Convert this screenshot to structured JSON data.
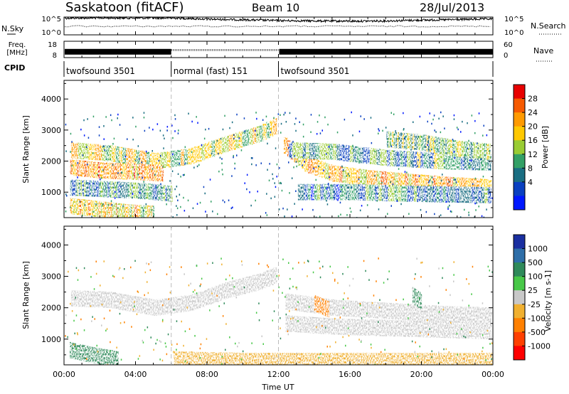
{
  "header": {
    "station": "Saskatoon (fitACF)",
    "beam": "Beam 10",
    "date": "28/Jul/2013"
  },
  "sky_panel": {
    "left_label": "N.Sky",
    "right_label": "N.Search",
    "left_ticks": [
      "10^5",
      "10^0"
    ],
    "right_ticks": [
      "10^5",
      "10^0"
    ]
  },
  "freq_panel": {
    "left_label_1": "Freq.",
    "left_label_2": "[MHz]",
    "right_label": "Nave",
    "left_ticks": [
      "18",
      "8"
    ],
    "right_ticks": [
      "60",
      "0"
    ]
  },
  "cpid": {
    "label": "CPID",
    "segments": [
      {
        "name": "twofsound 3501",
        "start": 0,
        "end": 6
      },
      {
        "name": "normal (fast) 151",
        "start": 6,
        "end": 12
      },
      {
        "name": "twofsound 3501",
        "start": 12,
        "end": 24
      }
    ]
  },
  "time_axis": {
    "label": "Time UT",
    "ticks": [
      "00:00",
      "04:00",
      "08:00",
      "12:00",
      "16:00",
      "20:00",
      "00:00"
    ],
    "tick_hours": [
      0,
      4,
      8,
      12,
      16,
      20,
      24
    ]
  },
  "range_axis": {
    "label": "Slant Range [km]",
    "ticks": [
      "1000",
      "2000",
      "3000",
      "4000"
    ],
    "tick_values": [
      1000,
      2000,
      3000,
      4000
    ],
    "range": [
      180,
      4600
    ]
  },
  "power_colorbar": {
    "title": "Power [dB]",
    "tick_labels": [
      "28",
      "24",
      "20",
      "16",
      "12",
      "8",
      "4"
    ],
    "colors": [
      "#e80000",
      "#f65a00",
      "#ff9a00",
      "#ffc800",
      "#99cc33",
      "#33a066",
      "#1a6e82",
      "#0a40c0",
      "#0018ff"
    ]
  },
  "velocity_colorbar": {
    "title": "Velocity [m s-1]",
    "tick_labels": [
      "1000",
      "500",
      "100",
      "25",
      "-25",
      "-100",
      "-500",
      "-1000"
    ],
    "colors": [
      "#1a2fa0",
      "#2e6ea8",
      "#2f8a5a",
      "#48c848",
      "#c8c8c8",
      "#f0b030",
      "#ff8000",
      "#ff4000",
      "#ff0000"
    ]
  },
  "chart_data": [
    {
      "type": "line",
      "title": "Saskatoon (fitACF)",
      "xlabel": "Time UT",
      "xlim": [
        0,
        24
      ],
      "series": [
        {
          "name": "N.Sky",
          "x": [
            0,
            2,
            4,
            6,
            8,
            10,
            12,
            14,
            16,
            18,
            20,
            22,
            24
          ],
          "y": [
            80000,
            90000,
            85000,
            85000,
            40000,
            25000,
            15000,
            12000,
            10000,
            12000,
            20000,
            30000,
            45000
          ]
        }
      ]
    },
    {
      "type": "line",
      "xlabel": "Time UT",
      "xlim": [
        0,
        24
      ],
      "series": [
        {
          "name": "Freq. [MHz]",
          "x": [
            0,
            6,
            6,
            12,
            12,
            24
          ],
          "y": [
            11,
            11,
            10,
            10,
            11,
            11
          ]
        }
      ]
    },
    {
      "type": "heatmap",
      "xlabel": "Time UT",
      "ylabel": "Slant Range [km]",
      "xlim": [
        0,
        24
      ],
      "ylim": [
        180,
        4600
      ],
      "colorbar": "Power [dB]",
      "bands": [
        {
          "x": [
            0.3,
            2.5,
            5.0,
            7.0,
            9.0,
            11.0,
            11.8
          ],
          "y": [
            2350,
            2250,
            2000,
            2150,
            2550,
            2900,
            3150
          ],
          "value": 18
        },
        {
          "x": [
            0.3,
            2.0,
            4.0,
            5.5
          ],
          "y": [
            1800,
            1700,
            1650,
            1600
          ],
          "value": 24
        },
        {
          "x": [
            0.3,
            2.0,
            4.0,
            6.0
          ],
          "y": [
            1150,
            1100,
            1050,
            950
          ],
          "value": 10
        },
        {
          "x": [
            0.3,
            2.0,
            3.5,
            5.0
          ],
          "y": [
            550,
            450,
            350,
            300
          ],
          "value": 20
        },
        {
          "x": [
            12.2,
            13.5,
            15.0,
            17.0,
            19.0,
            21.0,
            23.8
          ],
          "y": [
            2550,
            1900,
            1600,
            1450,
            1350,
            1250,
            1150
          ],
          "value": 22
        },
        {
          "x": [
            12.5,
            15.0,
            18.0,
            21.0,
            23.8
          ],
          "y": [
            2350,
            2300,
            2100,
            2000,
            1950
          ],
          "value": 12
        },
        {
          "x": [
            13.0,
            16.0,
            19.0,
            23.8
          ],
          "y": [
            1000,
            1000,
            950,
            900
          ],
          "value": 8
        },
        {
          "x": [
            18.0,
            20.0,
            22.0,
            23.8
          ],
          "y": [
            2700,
            2600,
            2400,
            2300
          ],
          "value": 14
        }
      ]
    },
    {
      "type": "heatmap",
      "xlabel": "Time UT",
      "ylabel": "Slant Range [km]",
      "xlim": [
        0,
        24
      ],
      "ylim": [
        180,
        4600
      ],
      "colorbar": "Velocity [m s-1]",
      "bands": [
        {
          "x": [
            0.3,
            2.5,
            5.0,
            7.0,
            9.0,
            11.0,
            11.8
          ],
          "y": [
            2300,
            2250,
            2000,
            2150,
            2550,
            2850,
            3050
          ],
          "value": 0
        },
        {
          "x": [
            12.3,
            15.0,
            18.0,
            21.0,
            23.8
          ],
          "y": [
            2200,
            2000,
            1900,
            1800,
            1750
          ],
          "value": 0
        },
        {
          "x": [
            12.3,
            15.0,
            18.0,
            21.0,
            23.8
          ],
          "y": [
            1500,
            1400,
            1350,
            1300,
            1250
          ],
          "value": 0
        },
        {
          "x": [
            0.3,
            1.5,
            3.0
          ],
          "y": [
            650,
            500,
            350
          ],
          "value": 150
        },
        {
          "x": [
            6.0,
            10.0,
            14.0,
            18.0,
            23.8
          ],
          "y": [
            350,
            300,
            300,
            300,
            300
          ],
          "value": -80
        },
        {
          "x": [
            14.0,
            14.8
          ],
          "y": [
            2150,
            1950
          ],
          "value": -400
        },
        {
          "x": [
            19.5,
            20.0
          ],
          "y": [
            2400,
            2200
          ],
          "value": 300
        }
      ]
    }
  ]
}
